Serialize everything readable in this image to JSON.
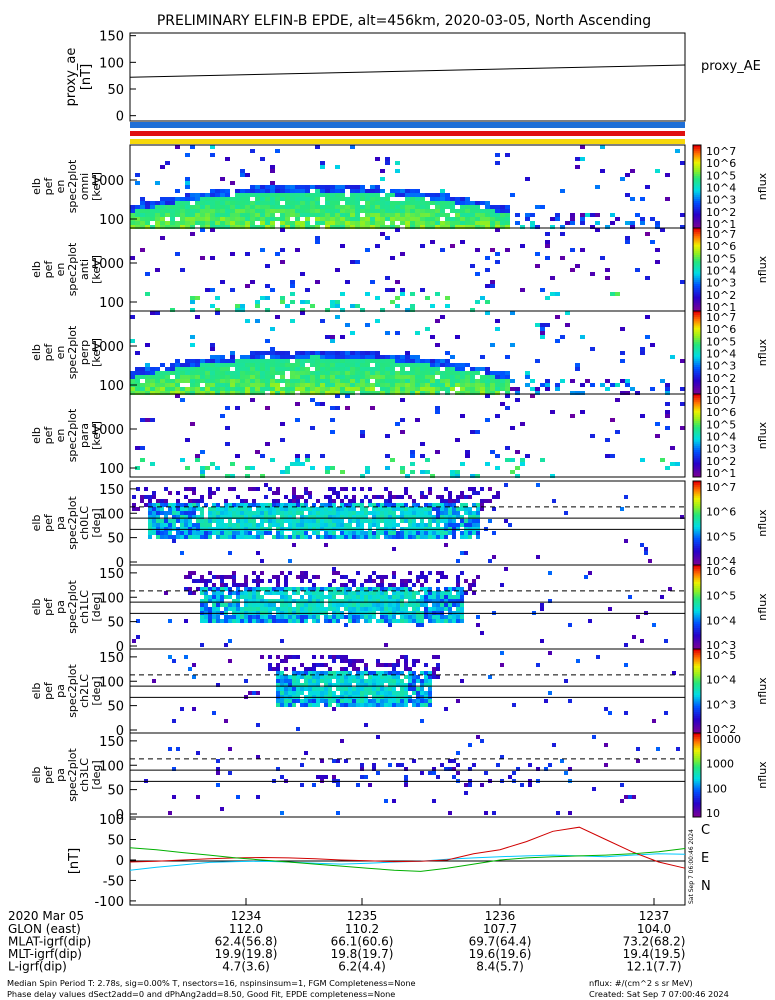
{
  "title": "PRELIMINARY ELFIN-B EPDE, alt=456km, 2020-03-05, North Ascending",
  "colors": {
    "bar_blue": "#1f6fd6",
    "bar_red": "#e0100f",
    "bar_yellow": "#f7d80a",
    "trace_c": "#00c8ff",
    "trace_e": "#d00000",
    "trace_n": "#00b000"
  },
  "proxy_ae": {
    "ylabel_lines": [
      "proxy_ae",
      "[nT]"
    ],
    "yticks": [
      "150",
      "100",
      "50",
      "0"
    ],
    "ylim": [
      -10,
      155
    ],
    "legend": "proxy_AE",
    "line": [
      [
        0,
        72
      ],
      [
        1,
        95
      ]
    ]
  },
  "spectrogram_panels": [
    {
      "ylabel": [
        "elb",
        "pef",
        "en",
        "spec2plot",
        "omni",
        "[keV]"
      ],
      "yticks": [
        "1000",
        "100"
      ],
      "cbar_ticks": [
        "10^7",
        "10^6",
        "10^5",
        "10^4",
        "10^3",
        "10^2",
        "10^1"
      ],
      "cbar_label": "nflux",
      "density": "high"
    },
    {
      "ylabel": [
        "elb",
        "pef",
        "en",
        "spec2plot",
        "anti",
        "[keV]"
      ],
      "yticks": [
        "1000",
        "100"
      ],
      "cbar_ticks": [
        "10^7",
        "10^6",
        "10^5",
        "10^4",
        "10^3",
        "10^2",
        "10^1"
      ],
      "cbar_label": "nflux",
      "density": "low"
    },
    {
      "ylabel": [
        "elb",
        "pef",
        "en",
        "spec2plot",
        "perp",
        "[keV]"
      ],
      "yticks": [
        "1000",
        "100"
      ],
      "cbar_ticks": [
        "10^7",
        "10^6",
        "10^5",
        "10^4",
        "10^3",
        "10^2",
        "10^1"
      ],
      "cbar_label": "nflux",
      "density": "high"
    },
    {
      "ylabel": [
        "elb",
        "pef",
        "en",
        "spec2plot",
        "para",
        "[keV]"
      ],
      "yticks": [
        "1000",
        "100"
      ],
      "cbar_ticks": [
        "10^7",
        "10^6",
        "10^5",
        "10^4",
        "10^3",
        "10^2",
        "10^1"
      ],
      "cbar_label": "nflux",
      "density": "low"
    }
  ],
  "pitch_panels": [
    {
      "ylabel": [
        "elb",
        "pef",
        "pa",
        "spec2plot",
        "ch0LC",
        "[deg]"
      ],
      "yticks": [
        "150",
        "100",
        "50",
        "0"
      ],
      "cbar_ticks": [
        "10^7",
        "10^6",
        "10^5",
        "10^4"
      ],
      "cbar_label": "nflux",
      "density": "high"
    },
    {
      "ylabel": [
        "elb",
        "pef",
        "pa",
        "spec2plot",
        "ch1LC",
        "[deg]"
      ],
      "yticks": [
        "150",
        "100",
        "50",
        "0"
      ],
      "cbar_ticks": [
        "10^6",
        "10^5",
        "10^4",
        "10^3"
      ],
      "cbar_label": "nflux",
      "density": "mid"
    },
    {
      "ylabel": [
        "elb",
        "pef",
        "pa",
        "spec2plot",
        "ch2LC",
        "[deg]"
      ],
      "yticks": [
        "150",
        "100",
        "50",
        "0"
      ],
      "cbar_ticks": [
        "10^5",
        "10^4",
        "10^3",
        "10^2"
      ],
      "cbar_label": "nflux",
      "density": "small"
    },
    {
      "ylabel": [
        "elb",
        "pef",
        "pa",
        "spec2plot",
        "ch3LC",
        "[deg]"
      ],
      "yticks": [
        "150",
        "100",
        "50",
        "0"
      ],
      "cbar_ticks": [
        "10000",
        "1000",
        "100",
        "10"
      ],
      "cbar_label": "nflux",
      "density": "low"
    }
  ],
  "field_panel": {
    "ylabel": "[nT]",
    "yticks": [
      "100",
      "50",
      "0",
      "-50",
      "-100"
    ],
    "ylim": [
      -110,
      105
    ],
    "labels": [
      "C",
      "E",
      "N"
    ],
    "side_text": "Sat Sep  7 06:00:46 2024"
  },
  "time_axis": {
    "date": "2020 Mar 05",
    "ticks": [
      "1234",
      "1235",
      "1236",
      "1237"
    ]
  },
  "ephemeris": [
    {
      "label": "GLON (east)",
      "values": [
        "112.0",
        "110.2",
        "107.7",
        "104.0"
      ]
    },
    {
      "label": "MLAT-igrf(dip)",
      "values": [
        "62.4(56.8)",
        "66.1(60.6)",
        "69.7(64.4)",
        "73.2(68.2)"
      ]
    },
    {
      "label": "MLT-igrf(dip)",
      "values": [
        "19.9(19.8)",
        "19.8(19.7)",
        "19.6(19.6)",
        "19.4(19.5)"
      ]
    },
    {
      "label": "L-igrf(dip)",
      "values": [
        "4.7(3.6)",
        "6.2(4.4)",
        "8.4(5.7)",
        "12.1(7.7)"
      ]
    }
  ],
  "footer": {
    "line1": "Median Spin Period T: 2.78s, sig=0.00% T, nsectors=16, nspinsinsum=1, FGM Completeness=None",
    "line2": "Phase delay values dSect2add=0 and dPhAng2add=8.50, Good Fit, EPDE completeness=None",
    "right1": "nflux: #/(cm^2 s sr MeV)",
    "right2": "Created: Sat Sep  7 07:00:46 2024"
  },
  "chart_data": [
    {
      "type": "line",
      "title": "",
      "ylabel": "proxy_ae [nT]",
      "x": [
        "1233.1",
        "1237.4"
      ],
      "series": [
        {
          "name": "proxy_AE",
          "values": [
            72,
            95
          ]
        }
      ]
    },
    {
      "type": "heatmap",
      "ylabel": "elb pef en spec2plot omni [keV]",
      "y_scale": "log",
      "note_band": "100-700 keV active 1233.1-1235.7"
    },
    {
      "type": "heatmap",
      "ylabel": "elb pef en spec2plot anti [keV]",
      "y_scale": "log"
    },
    {
      "type": "heatmap",
      "ylabel": "elb pef en spec2plot perp [keV]",
      "y_scale": "log"
    },
    {
      "type": "heatmap",
      "ylabel": "elb pef en spec2plot para [keV]",
      "y_scale": "log"
    },
    {
      "type": "heatmap",
      "ylabel": "elb pef pa spec2plot ch0LC [deg]",
      "ylim": [
        0,
        160
      ]
    },
    {
      "type": "heatmap",
      "ylabel": "elb pef pa spec2plot ch1LC [deg]",
      "ylim": [
        0,
        160
      ]
    },
    {
      "type": "heatmap",
      "ylabel": "elb pef pa spec2plot ch2LC [deg]",
      "ylim": [
        0,
        160
      ]
    },
    {
      "type": "heatmap",
      "ylabel": "elb pef pa spec2plot ch3LC [deg]",
      "ylim": [
        0,
        160
      ]
    },
    {
      "type": "line",
      "ylabel": "[nT]",
      "ylim": [
        -110,
        105
      ],
      "series": [
        {
          "name": "C",
          "values": [
            -25,
            -18,
            -12,
            -6,
            -4,
            -3,
            -5,
            -8,
            -10,
            -8,
            -5,
            -3,
            2,
            5,
            8,
            10,
            12,
            10,
            8,
            12,
            15,
            14
          ]
        },
        {
          "name": "E",
          "values": [
            -5,
            -3,
            0,
            3,
            5,
            6,
            5,
            3,
            0,
            -2,
            -4,
            -3,
            0,
            15,
            25,
            45,
            70,
            80,
            50,
            20,
            -5,
            -20
          ]
        },
        {
          "name": "N",
          "values": [
            30,
            25,
            18,
            12,
            5,
            0,
            -5,
            -10,
            -15,
            -20,
            -25,
            -28,
            -20,
            -10,
            0,
            5,
            8,
            10,
            12,
            15,
            20,
            28
          ]
        }
      ]
    }
  ]
}
